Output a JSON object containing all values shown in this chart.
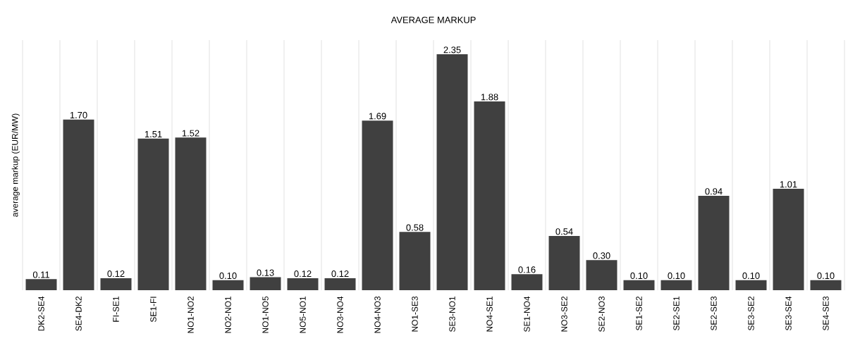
{
  "chart_data": {
    "type": "bar",
    "title": "AVERAGE MARKUP",
    "ylabel": "average markup (EUR/MW)",
    "categories": [
      "DK2-SE4",
      "SE4-DK2",
      "FI-SE1",
      "SE1-FI",
      "NO1-NO2",
      "NO2-NO1",
      "NO1-NO5",
      "NO5-NO1",
      "NO3-NO4",
      "NO4-NO3",
      "NO1-SE3",
      "SE3-NO1",
      "NO4-SE1",
      "SE1-NO4",
      "NO3-SE2",
      "SE2-NO3",
      "SE1-SE2",
      "SE2-SE1",
      "SE2-SE3",
      "SE3-SE2",
      "SE3-SE4",
      "SE4-SE3"
    ],
    "values": [
      0.11,
      1.7,
      0.12,
      1.51,
      1.52,
      0.1,
      0.13,
      0.12,
      0.12,
      1.69,
      0.58,
      2.35,
      1.88,
      0.16,
      0.54,
      0.3,
      0.1,
      0.1,
      0.94,
      0.1,
      1.01,
      0.1
    ],
    "value_labels": [
      "0.11",
      "1.70",
      "0.12",
      "1.51",
      "1.52",
      "0.10",
      "0.13",
      "0.12",
      "0.12",
      "1.69",
      "0.58",
      "2.35",
      "1.88",
      "0.16",
      "0.54",
      "0.30",
      "0.10",
      "0.10",
      "0.94",
      "0.10",
      "1.01",
      "0.10"
    ],
    "color": "#404040",
    "grid": "x"
  }
}
